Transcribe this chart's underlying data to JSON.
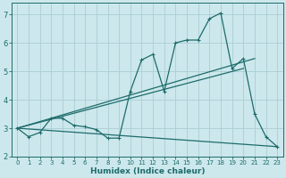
{
  "xlabel": "Humidex (Indice chaleur)",
  "bg_color": "#cce8ec",
  "grid_color": "#aacdd4",
  "line_color": "#1e6b6b",
  "xlim": [
    -0.5,
    23.5
  ],
  "ylim": [
    2.0,
    7.4
  ],
  "xticks": [
    0,
    1,
    2,
    3,
    4,
    5,
    6,
    7,
    8,
    9,
    10,
    11,
    12,
    13,
    14,
    15,
    16,
    17,
    18,
    19,
    20,
    21,
    22,
    23
  ],
  "yticks": [
    2,
    3,
    4,
    5,
    6,
    7
  ],
  "curve1_x": [
    0,
    1,
    2,
    3,
    4,
    5,
    6,
    7,
    8,
    9,
    10,
    11,
    12,
    13,
    14,
    15,
    16,
    17,
    18,
    19,
    20,
    21,
    22,
    23
  ],
  "curve1_y": [
    3.0,
    2.7,
    2.85,
    3.35,
    3.35,
    3.1,
    3.05,
    2.95,
    2.65,
    2.65,
    4.3,
    5.4,
    5.6,
    4.3,
    6.0,
    6.1,
    6.1,
    6.85,
    7.05,
    5.1,
    5.45,
    3.5,
    2.7,
    2.35
  ],
  "line2_x": [
    0,
    20
  ],
  "line2_y": [
    3.0,
    5.1
  ],
  "line3_x": [
    0,
    21
  ],
  "line3_y": [
    3.0,
    5.45
  ],
  "line4_x": [
    0,
    23
  ],
  "line4_y": [
    3.0,
    2.35
  ]
}
